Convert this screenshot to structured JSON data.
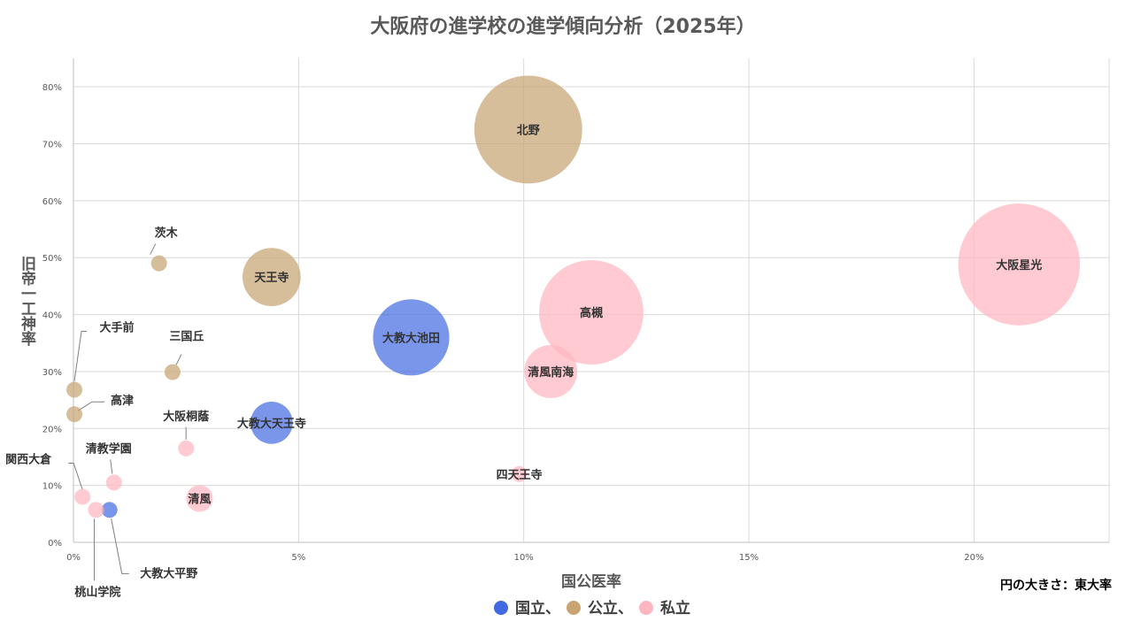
{
  "chart_data": {
    "type": "scatter",
    "title": "大阪府の進学校の進学傾向分析（2025年）",
    "xlabel": "国公医率",
    "ylabel": "旧帝一工神率",
    "xlim": [
      0,
      0.23
    ],
    "ylim": [
      0,
      0.85
    ],
    "x_ticks": [
      {
        "value": 0,
        "label": "0%"
      },
      {
        "value": 0.05,
        "label": "5%"
      },
      {
        "value": 0.1,
        "label": "10%"
      },
      {
        "value": 0.15,
        "label": "15%"
      },
      {
        "value": 0.2,
        "label": "20%"
      }
    ],
    "y_ticks": [
      {
        "value": 0,
        "label": "0%"
      },
      {
        "value": 0.1,
        "label": "10%"
      },
      {
        "value": 0.2,
        "label": "20%"
      },
      {
        "value": 0.3,
        "label": "30%"
      },
      {
        "value": 0.4,
        "label": "40%"
      },
      {
        "value": 0.5,
        "label": "50%"
      },
      {
        "value": 0.6,
        "label": "60%"
      },
      {
        "value": 0.7,
        "label": "70%"
      },
      {
        "value": 0.8,
        "label": "80%"
      }
    ],
    "grid": true,
    "size_note": "円の大きさ：東大率",
    "legend": {
      "placement": "bottom",
      "text": "国立、公立、私立",
      "entries": [
        {
          "name": "国立",
          "color": "#4169E1"
        },
        {
          "name": "公立",
          "color": "#C8A573"
        },
        {
          "name": "私立",
          "color": "#FFB6C1"
        }
      ]
    },
    "points": [
      {
        "name": "北野",
        "group": "公立",
        "x": 0.101,
        "y": 0.725,
        "size": 0.062
      },
      {
        "name": "天王寺",
        "group": "公立",
        "x": 0.044,
        "y": 0.466,
        "size": 0.018
      },
      {
        "name": "茨木",
        "group": "公立",
        "x": 0.019,
        "y": 0.49,
        "size": 0.0005
      },
      {
        "name": "三国丘",
        "group": "公立",
        "x": 0.022,
        "y": 0.299,
        "size": 0.0005
      },
      {
        "name": "大手前",
        "group": "公立",
        "x": 0.0002,
        "y": 0.268,
        "size": 0.0005
      },
      {
        "name": "高津",
        "group": "公立",
        "x": 0.0002,
        "y": 0.225,
        "size": 0.0005
      },
      {
        "name": "大教大池田",
        "group": "国立",
        "x": 0.075,
        "y": 0.36,
        "size": 0.031
      },
      {
        "name": "大教大天王寺",
        "group": "国立",
        "x": 0.044,
        "y": 0.21,
        "size": 0.0095
      },
      {
        "name": "大教大平野",
        "group": "国立",
        "x": 0.008,
        "y": 0.057,
        "size": 0.0005
      },
      {
        "name": "大阪星光",
        "group": "私立",
        "x": 0.21,
        "y": 0.488,
        "size": 0.079
      },
      {
        "name": "高槻",
        "group": "私立",
        "x": 0.115,
        "y": 0.404,
        "size": 0.058
      },
      {
        "name": "清風南海",
        "group": "私立",
        "x": 0.106,
        "y": 0.3,
        "size": 0.015
      },
      {
        "name": "四天王寺",
        "group": "私立",
        "x": 0.099,
        "y": 0.12,
        "size": 0.0005
      },
      {
        "name": "大阪桐蔭",
        "group": "私立",
        "x": 0.025,
        "y": 0.165,
        "size": 0.0005
      },
      {
        "name": "清風",
        "group": "私立",
        "x": 0.028,
        "y": 0.077,
        "size": 0.0038
      },
      {
        "name": "清教学園",
        "group": "私立",
        "x": 0.009,
        "y": 0.105,
        "size": 0.0005
      },
      {
        "name": "関西大倉",
        "group": "私立",
        "x": 0.002,
        "y": 0.08,
        "size": 0.0005
      },
      {
        "name": "桃山学院",
        "group": "私立",
        "x": 0.005,
        "y": 0.057,
        "size": 0.0005
      }
    ]
  }
}
